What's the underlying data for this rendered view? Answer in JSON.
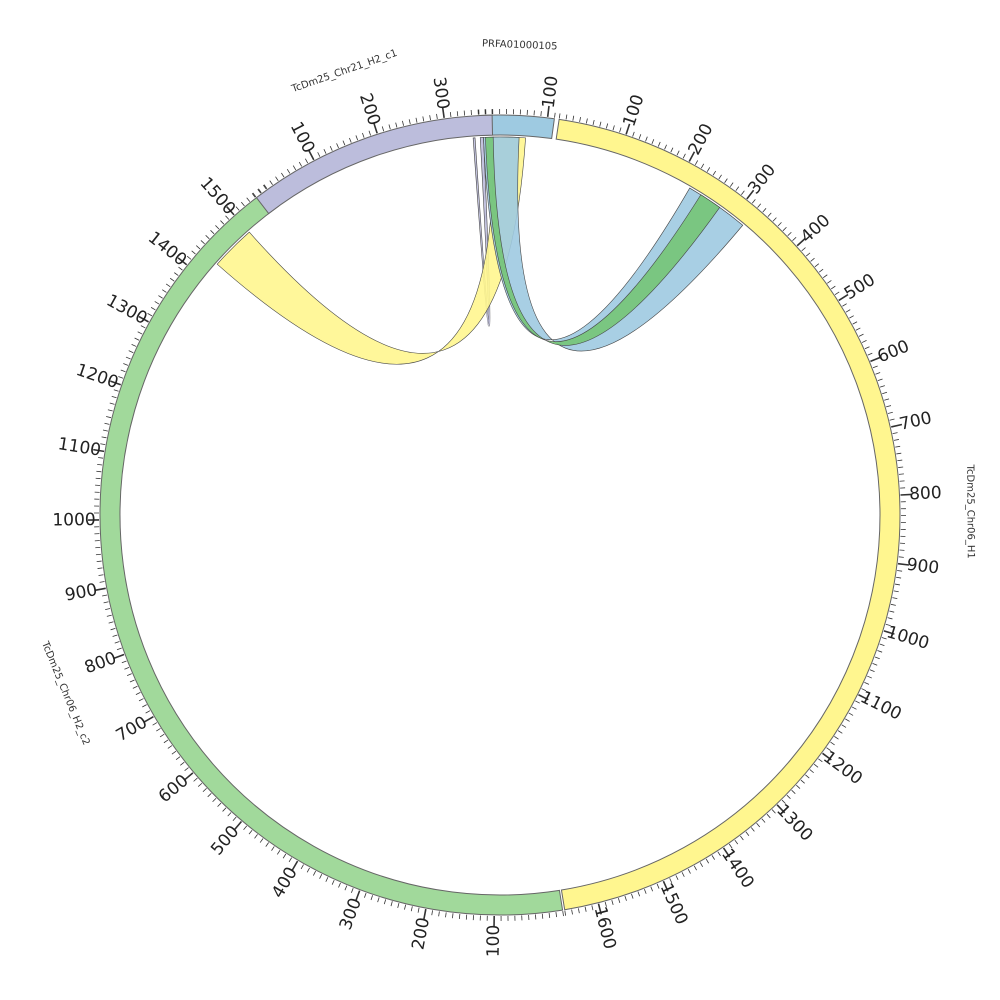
{
  "chart_data": {
    "type": "chord",
    "segments": [
      {
        "name": "PRFA01000105",
        "length": 110,
        "color": "#9ecae1",
        "tick_labels": [
          "100"
        ]
      },
      {
        "name": "TcDm25_Chr06_H1",
        "length": 1650,
        "color": "#fff68f",
        "tick_labels": [
          "100",
          "200",
          "300",
          "400",
          "500",
          "600",
          "700",
          "800",
          "900",
          "1000",
          "1100",
          "1200",
          "1300",
          "1400",
          "1500",
          "1600"
        ]
      },
      {
        "name": "TcDm25_Chr06_H2_c2",
        "length": 1560,
        "color": "#a1d99b",
        "tick_labels": [
          "100",
          "200",
          "300",
          "400",
          "500",
          "600",
          "700",
          "800",
          "900",
          "1000",
          "1100",
          "1200",
          "1300",
          "1400",
          "1500"
        ]
      },
      {
        "name": "TcDm25_Chr21_H2_c1",
        "length": 370,
        "color": "#bcbddc",
        "tick_labels": [
          "100",
          "200",
          "300"
        ]
      }
    ],
    "links": [
      {
        "from": "PRFA01000105",
        "from_range": [
          0,
          5
        ],
        "to": "TcDm25_Chr21_H2_c1",
        "to_range": [
          340,
          343
        ],
        "color": "#bcbddc"
      },
      {
        "from": "PRFA01000105",
        "from_range": [
          20,
          70
        ],
        "to": "TcDm25_Chr06_H2_c2",
        "to_range": [
          1430,
          1500
        ],
        "color": "#fff68f"
      },
      {
        "from": "PRFA01000105",
        "from_range": [
          5,
          60
        ],
        "to": "TcDm25_Chr06_H1",
        "to_range": [
          220,
          320
        ],
        "color": "#9ecae1"
      },
      {
        "from": "PRFA01000105",
        "from_range": [
          8,
          20
        ],
        "to": "TcDm25_Chr06_H1",
        "to_range": [
          240,
          275
        ],
        "color": "#74c476"
      }
    ]
  }
}
